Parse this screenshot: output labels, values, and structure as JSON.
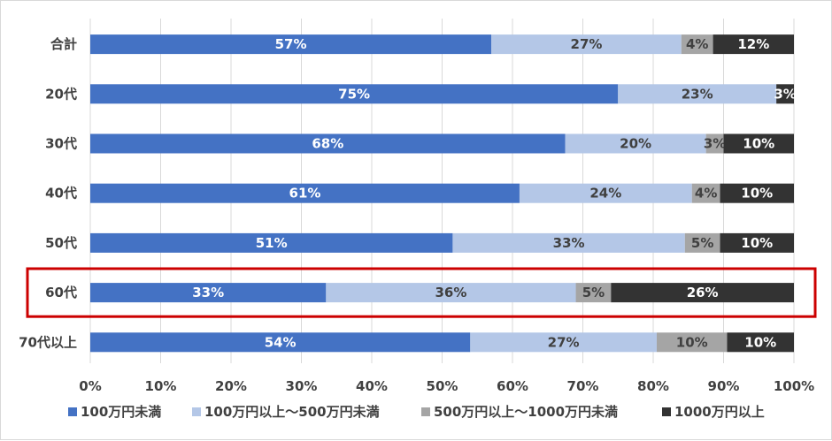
{
  "chart_data": {
    "type": "bar",
    "orientation": "horizontal",
    "stacked": "percent",
    "categories": [
      "合計",
      "20代",
      "30代",
      "40代",
      "50代",
      "60代",
      "70代以上"
    ],
    "series": [
      {
        "name": "100万円未満",
        "color": "#4472c4",
        "label_color": "#ffffff",
        "values": [
          57,
          75,
          67.5,
          61,
          51.5,
          33.5,
          54
        ],
        "labels": [
          "57%",
          "75%",
          "68%",
          "61%",
          "51%",
          "33%",
          "54%"
        ]
      },
      {
        "name": "100万円以上～500万円未満",
        "color": "#b4c7e7",
        "label_color": "#404040",
        "values": [
          27,
          22.5,
          20,
          24.5,
          33,
          35.5,
          26.5
        ],
        "labels": [
          "27%",
          "23%",
          "20%",
          "24%",
          "33%",
          "36%",
          "27%"
        ]
      },
      {
        "name": "500万円以上～1000万円未満",
        "color": "#a5a5a5",
        "label_color": "#404040",
        "values": [
          4.5,
          0,
          2.5,
          4,
          5,
          5,
          10
        ],
        "labels": [
          "4%",
          "",
          "3%",
          "4%",
          "5%",
          "5%",
          "10%"
        ]
      },
      {
        "name": "1000万円以上",
        "color": "#333333",
        "label_color": "#ffffff",
        "values": [
          11.5,
          2.5,
          10,
          10.5,
          10.5,
          26,
          9.5
        ],
        "labels": [
          "12%",
          "3%",
          "10%",
          "10%",
          "10%",
          "26%",
          "10%"
        ]
      }
    ],
    "xlim": [
      0,
      100
    ],
    "xticks": [
      "0%",
      "10%",
      "20%",
      "30%",
      "40%",
      "50%",
      "60%",
      "70%",
      "80%",
      "90%",
      "100%"
    ],
    "grid": true,
    "legend": "bottom",
    "highlight_category": "60代",
    "highlight_color": "#cc0000"
  }
}
